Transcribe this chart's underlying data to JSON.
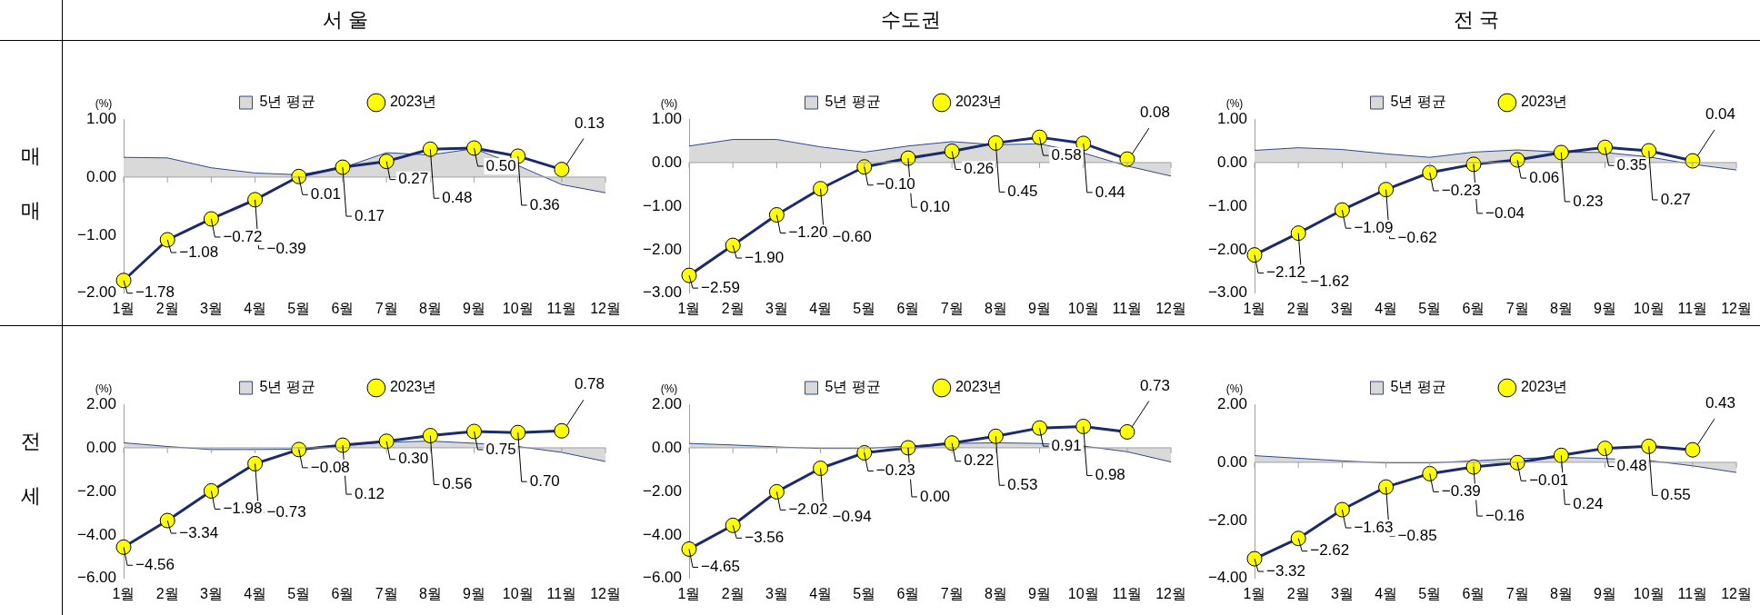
{
  "chart_data": [
    {
      "type": "line",
      "title": "서 울",
      "ref_lines": [
        {
          "axis": "y",
          "value": 0
        }
      ],
      "ylabel": "(%)",
      "annotations": [
        "매 매"
      ],
      "categories": [
        "1월",
        "2월",
        "3월",
        "4월",
        "5월",
        "6월",
        "7월",
        "8월",
        "9월",
        "10월",
        "11월",
        "12월"
      ],
      "legend": "top",
      "grid": false,
      "ylim": [
        -2,
        1
      ],
      "yticks": [
        {
          "value": -2,
          "label": "−2.00"
        },
        {
          "value": -1,
          "label": "−1.00"
        },
        {
          "value": 0,
          "label": "0.00"
        },
        {
          "value": 1,
          "label": "1.00"
        }
      ],
      "series": [
        {
          "name": "5년 평균",
          "type": "area",
          "color": "#d9d9d9",
          "values": [
            0.34,
            0.33,
            0.16,
            0.07,
            0.04,
            0.16,
            0.42,
            0.38,
            0.49,
            0.2,
            -0.13,
            -0.27
          ]
        },
        {
          "name": "2023년",
          "type": "line",
          "color": "#1a2a6c",
          "marker": "circle",
          "values": [
            -1.78,
            -1.08,
            -0.72,
            -0.39,
            0.01,
            0.17,
            0.27,
            0.48,
            0.5,
            0.36,
            0.13,
            null
          ],
          "value_labels": [
            "−1.78",
            "−1.08",
            "−0.72",
            "−0.39",
            "0.01",
            "0.17",
            "0.27",
            "0.48",
            "0.50",
            "0.36",
            "0.13",
            null
          ]
        }
      ]
    },
    {
      "type": "line",
      "title": "수도권",
      "ref_lines": [
        {
          "axis": "y",
          "value": 0
        }
      ],
      "ylabel": "(%)",
      "categories": [
        "1월",
        "2월",
        "3월",
        "4월",
        "5월",
        "6월",
        "7월",
        "8월",
        "9월",
        "10월",
        "11월",
        "12월"
      ],
      "legend": "top",
      "grid": false,
      "ylim": [
        -3,
        1
      ],
      "yticks": [
        {
          "value": -3,
          "label": "−3.00"
        },
        {
          "value": -2,
          "label": "−2.00"
        },
        {
          "value": -1,
          "label": "−1.00"
        },
        {
          "value": 0,
          "label": "0.00"
        },
        {
          "value": 1,
          "label": "1.00"
        }
      ],
      "series": [
        {
          "name": "5년 평균",
          "type": "area",
          "color": "#d9d9d9",
          "values": [
            0.38,
            0.53,
            0.53,
            0.36,
            0.24,
            0.38,
            0.48,
            0.41,
            0.43,
            0.22,
            -0.08,
            -0.31
          ]
        },
        {
          "name": "2023년",
          "type": "line",
          "color": "#1a2a6c",
          "marker": "circle",
          "values": [
            -2.59,
            -1.9,
            -1.2,
            -0.6,
            -0.1,
            0.1,
            0.26,
            0.45,
            0.58,
            0.44,
            0.08,
            null
          ],
          "value_labels": [
            "−2.59",
            "−1.90",
            "−1.20",
            "−0.60",
            "−0.10",
            "0.10",
            "0.26",
            "0.45",
            "0.58",
            "0.44",
            "0.08",
            null
          ]
        }
      ]
    },
    {
      "type": "line",
      "title": "전 국",
      "ref_lines": [
        {
          "axis": "y",
          "value": 0
        }
      ],
      "ylabel": "(%)",
      "categories": [
        "1월",
        "2월",
        "3월",
        "4월",
        "5월",
        "6월",
        "7월",
        "8월",
        "9월",
        "10월",
        "11월",
        "12월"
      ],
      "legend": "top",
      "grid": false,
      "ylim": [
        -3,
        1
      ],
      "yticks": [
        {
          "value": -3,
          "label": "−3.00"
        },
        {
          "value": -2,
          "label": "−2.00"
        },
        {
          "value": -1,
          "label": "−1.00"
        },
        {
          "value": 0,
          "label": "0.00"
        },
        {
          "value": 1,
          "label": "1.00"
        }
      ],
      "series": [
        {
          "name": "5년 평균",
          "type": "area",
          "color": "#d9d9d9",
          "values": [
            0.28,
            0.34,
            0.3,
            0.2,
            0.12,
            0.24,
            0.29,
            0.24,
            0.23,
            0.13,
            -0.04,
            -0.17
          ]
        },
        {
          "name": "2023년",
          "type": "line",
          "color": "#1a2a6c",
          "marker": "circle",
          "values": [
            -2.12,
            -1.62,
            -1.09,
            -0.62,
            -0.23,
            -0.04,
            0.06,
            0.23,
            0.35,
            0.27,
            0.04,
            null
          ],
          "value_labels": [
            "−2.12",
            "−1.62",
            "−1.09",
            "−0.62",
            "−0.23",
            "−0.04",
            "0.06",
            "0.23",
            "0.35",
            "0.27",
            "0.04",
            null
          ]
        }
      ]
    },
    {
      "type": "line",
      "ref_lines": [
        {
          "axis": "y",
          "value": 0
        }
      ],
      "ylabel": "(%)",
      "annotations": [
        "전 세"
      ],
      "categories": [
        "1월",
        "2월",
        "3월",
        "4월",
        "5월",
        "6월",
        "7월",
        "8월",
        "9월",
        "10월",
        "11월",
        "12월"
      ],
      "legend": "top",
      "grid": false,
      "ylim": [
        -6,
        2
      ],
      "yticks": [
        {
          "value": -6,
          "label": "−6.00"
        },
        {
          "value": -4,
          "label": "−4.00"
        },
        {
          "value": -2,
          "label": "−2.00"
        },
        {
          "value": 0,
          "label": "0.00"
        },
        {
          "value": 2,
          "label": "2.00"
        }
      ],
      "series": [
        {
          "name": "5년 평균",
          "type": "area",
          "color": "#d9d9d9",
          "values": [
            0.23,
            0.06,
            -0.08,
            -0.08,
            -0.06,
            0.13,
            0.25,
            0.31,
            0.21,
            0.06,
            -0.21,
            -0.63
          ]
        },
        {
          "name": "2023년",
          "type": "line",
          "color": "#1a2a6c",
          "marker": "circle",
          "values": [
            -4.56,
            -3.34,
            -1.98,
            -0.73,
            -0.08,
            0.12,
            0.3,
            0.56,
            0.75,
            0.7,
            0.78,
            null
          ],
          "value_labels": [
            "−4.56",
            "−3.34",
            "−1.98",
            "−0.73",
            "−0.08",
            "0.12",
            "0.30",
            "0.56",
            "0.75",
            "0.70",
            "0.78",
            null
          ]
        }
      ]
    },
    {
      "type": "line",
      "ref_lines": [
        {
          "axis": "y",
          "value": 0
        }
      ],
      "ylabel": "(%)",
      "categories": [
        "1월",
        "2월",
        "3월",
        "4월",
        "5월",
        "6월",
        "7월",
        "8월",
        "9월",
        "10월",
        "11월",
        "12월"
      ],
      "legend": "top",
      "grid": false,
      "ylim": [
        -6,
        2
      ],
      "yticks": [
        {
          "value": -6,
          "label": "−6.00"
        },
        {
          "value": -4,
          "label": "−4.00"
        },
        {
          "value": -2,
          "label": "−2.00"
        },
        {
          "value": 0,
          "label": "0.00"
        },
        {
          "value": 2,
          "label": "2.00"
        }
      ],
      "series": [
        {
          "name": "5년 평균",
          "type": "area",
          "color": "#d9d9d9",
          "values": [
            0.2,
            0.13,
            0.04,
            -0.03,
            -0.03,
            0.08,
            0.2,
            0.23,
            0.2,
            0.08,
            -0.18,
            -0.65
          ]
        },
        {
          "name": "2023년",
          "type": "line",
          "color": "#1a2a6c",
          "marker": "circle",
          "values": [
            -4.65,
            -3.56,
            -2.02,
            -0.94,
            -0.23,
            0,
            0.22,
            0.53,
            0.91,
            0.98,
            0.73,
            null
          ],
          "value_labels": [
            "−4.65",
            "−3.56",
            "−2.02",
            "−0.94",
            "−0.23",
            "0.00",
            "0.22",
            "0.53",
            "0.91",
            "0.98",
            "0.73",
            null
          ]
        }
      ]
    },
    {
      "type": "line",
      "ref_lines": [
        {
          "axis": "y",
          "value": 0
        }
      ],
      "ylabel": "(%)",
      "categories": [
        "1월",
        "2월",
        "3월",
        "4월",
        "5월",
        "6월",
        "7월",
        "8월",
        "9월",
        "10월",
        "11월",
        "12월"
      ],
      "legend": "top",
      "grid": false,
      "ylim": [
        -4,
        2
      ],
      "yticks": [
        {
          "value": -4,
          "label": "−4.00"
        },
        {
          "value": -2,
          "label": "−2.00"
        },
        {
          "value": 0,
          "label": "0.00"
        },
        {
          "value": 2,
          "label": "2.00"
        }
      ],
      "series": [
        {
          "name": "5년 평균",
          "type": "area",
          "color": "#d9d9d9",
          "values": [
            0.23,
            0.14,
            0.05,
            -0.02,
            -0.02,
            0.05,
            0.13,
            0.17,
            0.13,
            0.06,
            -0.12,
            -0.35
          ]
        },
        {
          "name": "2023년",
          "type": "line",
          "color": "#1a2a6c",
          "marker": "circle",
          "values": [
            -3.32,
            -2.62,
            -1.63,
            -0.85,
            -0.39,
            -0.16,
            -0.01,
            0.24,
            0.48,
            0.55,
            0.43,
            null
          ],
          "value_labels": [
            "−3.32",
            "−2.62",
            "−1.63",
            "−0.85",
            "−0.39",
            "−0.16",
            "−0.01",
            "0.24",
            "0.48",
            "0.55",
            "0.43",
            null
          ]
        }
      ]
    }
  ]
}
